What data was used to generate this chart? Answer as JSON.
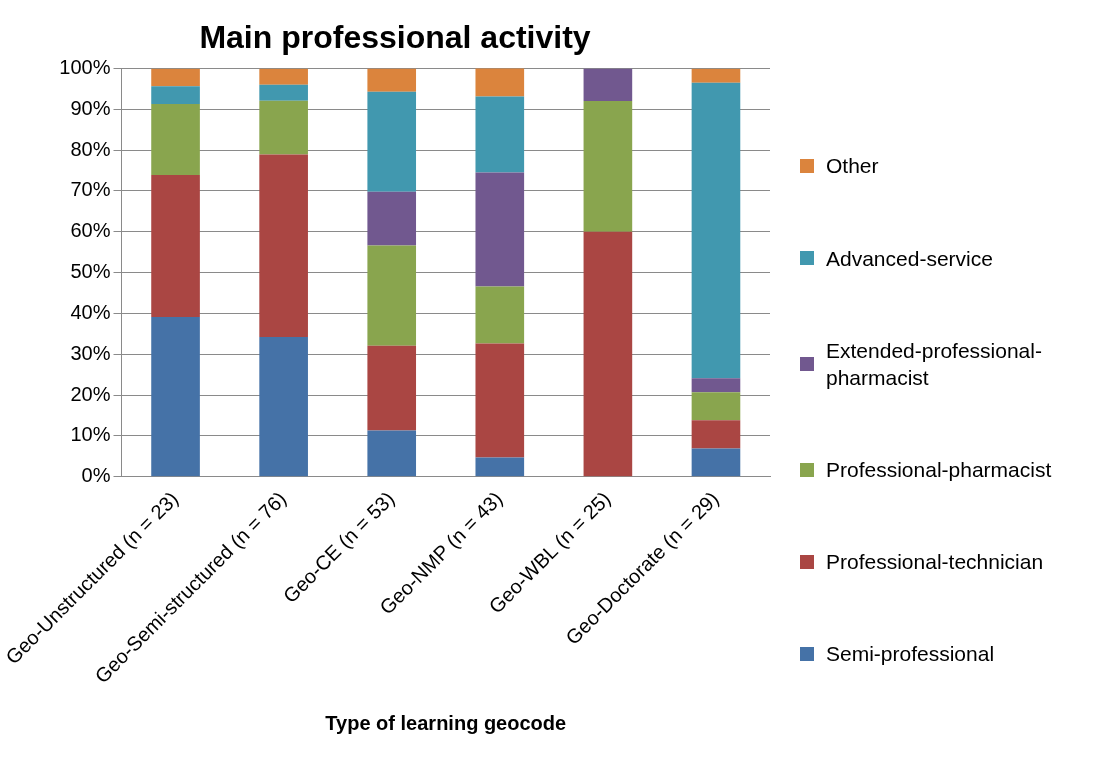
{
  "chart_data": {
    "type": "bar",
    "stacked": true,
    "title": "Main professional activity",
    "xlabel": "Type of learning geocode",
    "categories": [
      "Geo-Unstructured (n = 23)",
      "Geo-Semi-structured (n = 76)",
      "Geo-CE (n = 53)",
      "Geo-NMP (n = 43)",
      "Geo-WBL (n = 25)",
      "Geo-Doctorate (n = 29)"
    ],
    "series": [
      {
        "name": "Semi-professional",
        "color": "#4572a7",
        "values": [
          39.1,
          34.2,
          11.3,
          4.7,
          0,
          6.9
        ]
      },
      {
        "name": "Professional-technician",
        "color": "#aa4643",
        "values": [
          34.8,
          44.7,
          20.8,
          27.9,
          60,
          6.9
        ]
      },
      {
        "name": "Professional-pharmacist",
        "color": "#89a54e",
        "values": [
          17.4,
          13.2,
          24.5,
          14,
          32,
          6.9
        ]
      },
      {
        "name": "Extended-professional-pharmacist",
        "color": "#71588f",
        "values": [
          0,
          0,
          13.2,
          27.9,
          8,
          3.4
        ]
      },
      {
        "name": "Advanced-service",
        "color": "#4198af",
        "values": [
          4.3,
          3.9,
          24.5,
          18.6,
          0,
          72.4
        ]
      },
      {
        "name": "Other",
        "color": "#db843d",
        "values": [
          4.3,
          3.9,
          5.7,
          7,
          0,
          3.4
        ]
      }
    ],
    "ylim": [
      0,
      100
    ],
    "yticks": [
      {
        "value": 0,
        "label": "0%"
      },
      {
        "value": 10,
        "label": "10%"
      },
      {
        "value": 20,
        "label": "20%"
      },
      {
        "value": 30,
        "label": "30%"
      },
      {
        "value": 40,
        "label": "40%"
      },
      {
        "value": 50,
        "label": "50%"
      },
      {
        "value": 60,
        "label": "60%"
      },
      {
        "value": 70,
        "label": "70%"
      },
      {
        "value": 80,
        "label": "80%"
      },
      {
        "value": 90,
        "label": "90%"
      },
      {
        "value": 100,
        "label": "100%"
      }
    ],
    "grid": "y",
    "legend": "right"
  }
}
